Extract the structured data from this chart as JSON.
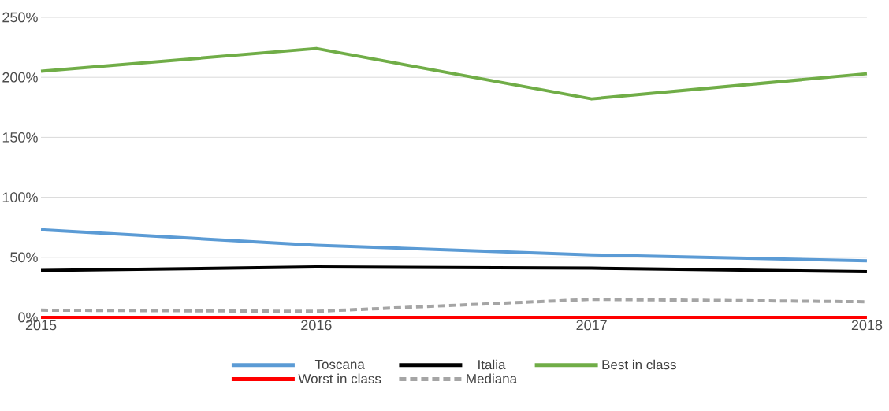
{
  "chart_data": {
    "type": "line",
    "categories": [
      "2015",
      "2016",
      "2017",
      "2018"
    ],
    "series": [
      {
        "name": "Toscana",
        "color": "#5b9bd5",
        "values": [
          73,
          60,
          52,
          47
        ]
      },
      {
        "name": "Italia",
        "color": "#000000",
        "values": [
          39,
          42,
          41,
          38
        ]
      },
      {
        "name": "Best in class",
        "color": "#70ad47",
        "values": [
          205,
          224,
          182,
          203
        ]
      },
      {
        "name": "Worst in class",
        "color": "#ff0000",
        "values": [
          0,
          0,
          0,
          0
        ]
      },
      {
        "name": "Mediana",
        "color": "#a5a5a5",
        "values": [
          6,
          5,
          15,
          13
        ],
        "line_style": "dashed"
      }
    ],
    "ylim": [
      0,
      250
    ],
    "yticks": [
      {
        "value": 0,
        "label": "0%"
      },
      {
        "value": 50,
        "label": "50%"
      },
      {
        "value": 100,
        "label": "100%"
      },
      {
        "value": 150,
        "label": "150%"
      },
      {
        "value": 200,
        "label": "200%"
      },
      {
        "value": 250,
        "label": "250%"
      }
    ],
    "grid": "y",
    "legend": "bottom",
    "marker": "none",
    "line_style": "solid"
  }
}
